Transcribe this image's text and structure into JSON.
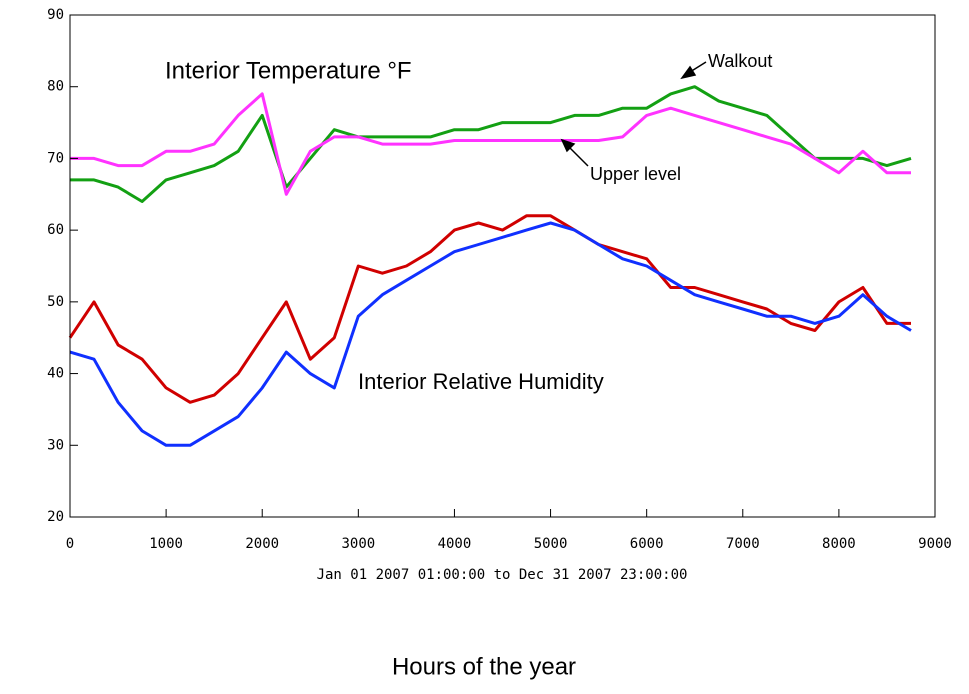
{
  "chart_data": {
    "type": "line",
    "annotations": {
      "temperature": "Interior Temperature °F",
      "humidity": "Interior Relative Humidity"
    },
    "x_subtitle": "Jan 01 2007 01:00:00 to Dec 31 2007 23:00:00",
    "x_label": "Hours of the year",
    "x": [
      0,
      250,
      500,
      750,
      1000,
      1250,
      1500,
      1750,
      2000,
      2250,
      2500,
      2750,
      3000,
      3250,
      3500,
      3750,
      4000,
      4250,
      4500,
      4750,
      5000,
      5250,
      5500,
      5750,
      6000,
      6250,
      6500,
      6750,
      7000,
      7250,
      7500,
      7750,
      8000,
      8250,
      8500,
      8750
    ],
    "series": [
      {
        "name": "Walkout",
        "color": "#13a013",
        "values": [
          67,
          67,
          66,
          64,
          67,
          68,
          69,
          71,
          76,
          66,
          70,
          74,
          73,
          73,
          73,
          73,
          74,
          74,
          75,
          75,
          75,
          76,
          76,
          77,
          77,
          79,
          80,
          78,
          77,
          76,
          73,
          70,
          70,
          70,
          69,
          70
        ]
      },
      {
        "name": "Upper level",
        "color": "#ff33ff",
        "values": [
          70,
          70,
          69,
          69,
          71,
          71,
          72,
          76,
          79,
          65,
          71,
          73,
          73,
          72,
          72,
          72,
          72.5,
          72.5,
          72.5,
          72.5,
          72.5,
          72.5,
          72.5,
          73,
          76,
          77,
          76,
          75,
          74,
          73,
          72,
          70,
          68,
          71,
          68,
          68
        ]
      },
      {
        "color": "#d00000",
        "values": [
          45,
          50,
          44,
          42,
          38,
          36,
          37,
          40,
          45,
          50,
          42,
          45,
          55,
          54,
          55,
          57,
          60,
          61,
          60,
          62,
          62,
          60,
          58,
          57,
          56,
          52,
          52,
          51,
          50,
          49,
          47,
          46,
          50,
          52,
          47,
          47
        ]
      },
      {
        "color": "#1030ff",
        "values": [
          43,
          42,
          36,
          32,
          30,
          30,
          32,
          34,
          38,
          43,
          40,
          38,
          48,
          51,
          53,
          55,
          57,
          58,
          59,
          60,
          61,
          60,
          58,
          56,
          55,
          53,
          51,
          50,
          49,
          48,
          48,
          47,
          48,
          51,
          48,
          46
        ]
      }
    ],
    "xlim": [
      0,
      9000
    ],
    "xticks": [
      0,
      1000,
      2000,
      3000,
      4000,
      5000,
      6000,
      7000,
      8000,
      9000
    ],
    "ylim": [
      20,
      90
    ],
    "yticks": [
      20,
      30,
      40,
      50,
      60,
      70,
      80,
      90
    ]
  }
}
